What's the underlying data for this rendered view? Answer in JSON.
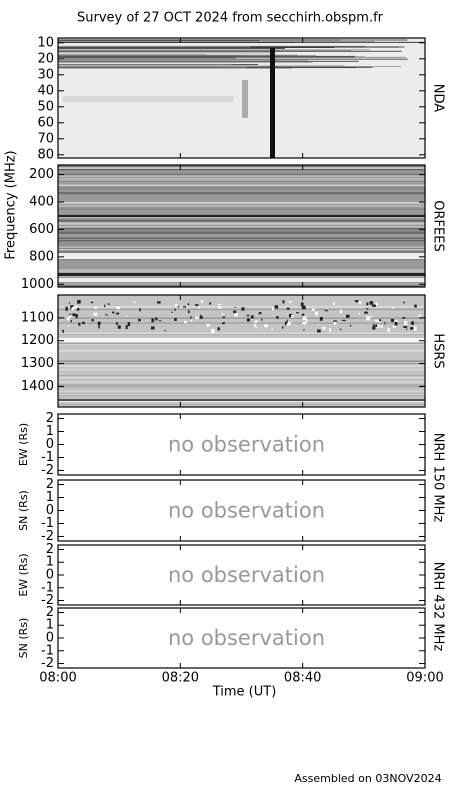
{
  "title": "Survey of 27 OCT 2024 from secchirh.obspm.fr",
  "footer": "Assembled on 03NOV2024",
  "chart_data": [
    {
      "type": "heatmap",
      "label": "NDA",
      "ylim": [
        82,
        7
      ],
      "yticks": [
        10,
        20,
        30,
        40,
        50,
        60,
        70,
        80
      ]
    },
    {
      "type": "heatmap",
      "label": "ORFEES",
      "ylabel": "Frequency (MHz)",
      "ylim": [
        1020,
        130
      ],
      "yticks": [
        200,
        400,
        600,
        800,
        1000
      ]
    },
    {
      "type": "heatmap",
      "label": "HSRS",
      "ylim": [
        1490,
        1000
      ],
      "yticks": [
        1100,
        1200,
        1300,
        1400
      ]
    },
    {
      "type": "empty",
      "label": "NRH 150 MHz",
      "ylabel": "EW (Rs)",
      "annotation": "no observation",
      "ylim": [
        -2.35,
        2.35
      ],
      "yticks": [
        -2,
        -1,
        0,
        1,
        2
      ]
    },
    {
      "type": "empty",
      "ylabel": "SN (Rs)",
      "annotation": "no observation",
      "ylim": [
        -2.35,
        2.35
      ],
      "yticks": [
        -2,
        -1,
        0,
        1,
        2
      ]
    },
    {
      "type": "empty",
      "label": "NRH 432 MHz",
      "ylabel": "EW (Rs)",
      "annotation": "no observation",
      "ylim": [
        -2.35,
        2.35
      ],
      "yticks": [
        -2,
        -1,
        0,
        1,
        2
      ]
    },
    {
      "type": "empty",
      "ylabel": "SN (Rs)",
      "annotation": "no observation",
      "ylim": [
        -2.35,
        2.35
      ],
      "yticks": [
        -2,
        -1,
        0,
        1,
        2
      ],
      "xlabel": "Time (UT)",
      "xlim": [
        "08:00",
        "09:00"
      ],
      "xticks": [
        "08:00",
        "08:20",
        "08:40",
        "09:00"
      ]
    }
  ]
}
